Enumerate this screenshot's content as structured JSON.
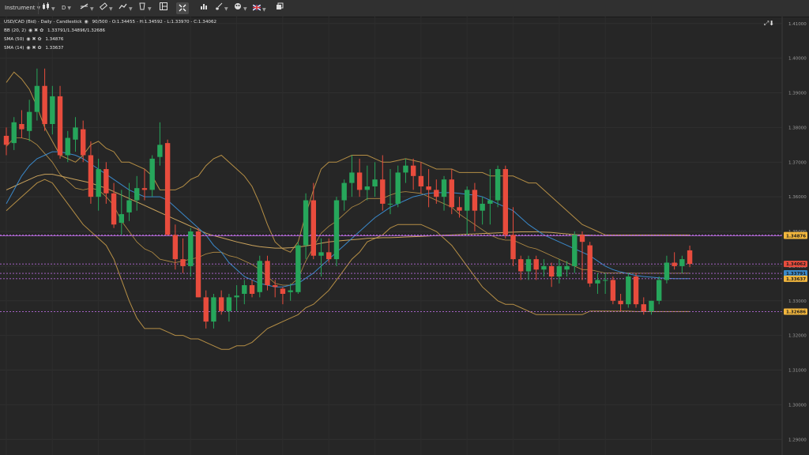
{
  "toolbar": {
    "instrument": "Instrument",
    "timeframe": "D",
    "icons": [
      "candlestick-icon",
      "line-draw-icon",
      "measure-icon",
      "trend-icon",
      "cup-icon",
      "layout-icon",
      "expand-icon",
      "bar-chart-icon",
      "brush-icon",
      "palette-icon",
      "flag-icon",
      "window-icon"
    ]
  },
  "legend": {
    "main": "USD/CAD (Bid) - Daily - Candlestick",
    "main_stats": "90/500 - O:1.34455 - H:1.34592 - L:1.33970 - C:1.34062",
    "ind1_label": "BB (20, 2)",
    "ind1_value": "1.33791/1.34896/1.32686",
    "ind2_label": "SMA (50)",
    "ind2_value": "1.34876",
    "ind3_label": "SMA (14)",
    "ind3_value": "1.33637"
  },
  "colors": {
    "background": "#262626",
    "bull": "#26a65b",
    "bear": "#e84c3d",
    "bb": "#b58e45",
    "sma50": "#c9a25c",
    "sma14": "#3a88c9",
    "hline": "#b46ad8",
    "label_gold": "#f2b63d",
    "label_red": "#e84c3d",
    "label_blue": "#3a88c9"
  },
  "chart_data": {
    "type": "candlestick",
    "y_ticks": [
      "1.41000",
      "1.40000",
      "1.39000",
      "1.38000",
      "1.37000",
      "1.36000",
      "1.35000",
      "1.34000",
      "1.33000",
      "1.32000",
      "1.31000",
      "1.30000",
      "1.29000"
    ],
    "ylim": [
      1.2855,
      1.412
    ],
    "grid": true,
    "candles": [
      {
        "o": 1.3776,
        "h": 1.38,
        "l": 1.372,
        "c": 1.375
      },
      {
        "o": 1.3755,
        "h": 1.383,
        "l": 1.3735,
        "c": 1.3815
      },
      {
        "o": 1.381,
        "h": 1.385,
        "l": 1.377,
        "c": 1.3795
      },
      {
        "o": 1.379,
        "h": 1.388,
        "l": 1.376,
        "c": 1.3845
      },
      {
        "o": 1.3845,
        "h": 1.397,
        "l": 1.382,
        "c": 1.392
      },
      {
        "o": 1.392,
        "h": 1.397,
        "l": 1.379,
        "c": 1.381
      },
      {
        "o": 1.381,
        "h": 1.392,
        "l": 1.378,
        "c": 1.389
      },
      {
        "o": 1.389,
        "h": 1.392,
        "l": 1.371,
        "c": 1.372
      },
      {
        "o": 1.372,
        "h": 1.379,
        "l": 1.37,
        "c": 1.377
      },
      {
        "o": 1.3765,
        "h": 1.383,
        "l": 1.373,
        "c": 1.38
      },
      {
        "o": 1.3795,
        "h": 1.382,
        "l": 1.37,
        "c": 1.372
      },
      {
        "o": 1.372,
        "h": 1.376,
        "l": 1.358,
        "c": 1.36
      },
      {
        "o": 1.36,
        "h": 1.371,
        "l": 1.356,
        "c": 1.368
      },
      {
        "o": 1.368,
        "h": 1.37,
        "l": 1.358,
        "c": 1.361
      },
      {
        "o": 1.361,
        "h": 1.364,
        "l": 1.351,
        "c": 1.352
      },
      {
        "o": 1.3525,
        "h": 1.362,
        "l": 1.349,
        "c": 1.355
      },
      {
        "o": 1.3555,
        "h": 1.364,
        "l": 1.353,
        "c": 1.359
      },
      {
        "o": 1.359,
        "h": 1.366,
        "l": 1.356,
        "c": 1.3625
      },
      {
        "o": 1.3625,
        "h": 1.368,
        "l": 1.359,
        "c": 1.362
      },
      {
        "o": 1.362,
        "h": 1.372,
        "l": 1.36,
        "c": 1.371
      },
      {
        "o": 1.3715,
        "h": 1.3815,
        "l": 1.369,
        "c": 1.375
      },
      {
        "o": 1.3755,
        "h": 1.3765,
        "l": 1.349,
        "c": 1.349
      },
      {
        "o": 1.349,
        "h": 1.352,
        "l": 1.339,
        "c": 1.342
      },
      {
        "o": 1.342,
        "h": 1.348,
        "l": 1.338,
        "c": 1.34
      },
      {
        "o": 1.34,
        "h": 1.351,
        "l": 1.337,
        "c": 1.35
      },
      {
        "o": 1.35,
        "h": 1.351,
        "l": 1.331,
        "c": 1.331
      },
      {
        "o": 1.331,
        "h": 1.333,
        "l": 1.322,
        "c": 1.324
      },
      {
        "o": 1.324,
        "h": 1.332,
        "l": 1.322,
        "c": 1.331
      },
      {
        "o": 1.331,
        "h": 1.333,
        "l": 1.326,
        "c": 1.327
      },
      {
        "o": 1.327,
        "h": 1.332,
        "l": 1.324,
        "c": 1.331
      },
      {
        "o": 1.331,
        "h": 1.3345,
        "l": 1.327,
        "c": 1.3315
      },
      {
        "o": 1.332,
        "h": 1.336,
        "l": 1.329,
        "c": 1.3345
      },
      {
        "o": 1.3345,
        "h": 1.336,
        "l": 1.331,
        "c": 1.332
      },
      {
        "o": 1.3325,
        "h": 1.343,
        "l": 1.331,
        "c": 1.3415
      },
      {
        "o": 1.3415,
        "h": 1.343,
        "l": 1.333,
        "c": 1.3345
      },
      {
        "o": 1.3345,
        "h": 1.336,
        "l": 1.331,
        "c": 1.334
      },
      {
        "o": 1.3335,
        "h": 1.334,
        "l": 1.329,
        "c": 1.332
      },
      {
        "o": 1.3325,
        "h": 1.335,
        "l": 1.33,
        "c": 1.333
      },
      {
        "o": 1.3325,
        "h": 1.347,
        "l": 1.332,
        "c": 1.346
      },
      {
        "o": 1.346,
        "h": 1.361,
        "l": 1.342,
        "c": 1.359
      },
      {
        "o": 1.359,
        "h": 1.364,
        "l": 1.342,
        "c": 1.343
      },
      {
        "o": 1.343,
        "h": 1.348,
        "l": 1.337,
        "c": 1.344
      },
      {
        "o": 1.344,
        "h": 1.348,
        "l": 1.341,
        "c": 1.342
      },
      {
        "o": 1.342,
        "h": 1.36,
        "l": 1.34,
        "c": 1.359
      },
      {
        "o": 1.359,
        "h": 1.365,
        "l": 1.356,
        "c": 1.364
      },
      {
        "o": 1.364,
        "h": 1.372,
        "l": 1.36,
        "c": 1.367
      },
      {
        "o": 1.367,
        "h": 1.371,
        "l": 1.36,
        "c": 1.362
      },
      {
        "o": 1.362,
        "h": 1.369,
        "l": 1.359,
        "c": 1.363
      },
      {
        "o": 1.363,
        "h": 1.37,
        "l": 1.36,
        "c": 1.365
      },
      {
        "o": 1.365,
        "h": 1.372,
        "l": 1.356,
        "c": 1.358
      },
      {
        "o": 1.358,
        "h": 1.368,
        "l": 1.355,
        "c": 1.358
      },
      {
        "o": 1.358,
        "h": 1.369,
        "l": 1.357,
        "c": 1.367
      },
      {
        "o": 1.367,
        "h": 1.371,
        "l": 1.364,
        "c": 1.369
      },
      {
        "o": 1.369,
        "h": 1.371,
        "l": 1.362,
        "c": 1.366
      },
      {
        "o": 1.366,
        "h": 1.37,
        "l": 1.361,
        "c": 1.363
      },
      {
        "o": 1.363,
        "h": 1.368,
        "l": 1.357,
        "c": 1.362
      },
      {
        "o": 1.362,
        "h": 1.365,
        "l": 1.358,
        "c": 1.36
      },
      {
        "o": 1.36,
        "h": 1.366,
        "l": 1.356,
        "c": 1.365
      },
      {
        "o": 1.365,
        "h": 1.368,
        "l": 1.355,
        "c": 1.357
      },
      {
        "o": 1.357,
        "h": 1.36,
        "l": 1.354,
        "c": 1.356
      },
      {
        "o": 1.356,
        "h": 1.363,
        "l": 1.349,
        "c": 1.362
      },
      {
        "o": 1.362,
        "h": 1.364,
        "l": 1.35,
        "c": 1.356
      },
      {
        "o": 1.356,
        "h": 1.36,
        "l": 1.352,
        "c": 1.358
      },
      {
        "o": 1.358,
        "h": 1.368,
        "l": 1.352,
        "c": 1.359
      },
      {
        "o": 1.359,
        "h": 1.369,
        "l": 1.357,
        "c": 1.368
      },
      {
        "o": 1.368,
        "h": 1.369,
        "l": 1.348,
        "c": 1.349
      },
      {
        "o": 1.349,
        "h": 1.357,
        "l": 1.34,
        "c": 1.342
      },
      {
        "o": 1.342,
        "h": 1.343,
        "l": 1.336,
        "c": 1.3385
      },
      {
        "o": 1.3385,
        "h": 1.343,
        "l": 1.336,
        "c": 1.342
      },
      {
        "o": 1.342,
        "h": 1.343,
        "l": 1.336,
        "c": 1.339
      },
      {
        "o": 1.339,
        "h": 1.342,
        "l": 1.337,
        "c": 1.34
      },
      {
        "o": 1.34,
        "h": 1.341,
        "l": 1.334,
        "c": 1.337
      },
      {
        "o": 1.337,
        "h": 1.342,
        "l": 1.335,
        "c": 1.34
      },
      {
        "o": 1.339,
        "h": 1.3415,
        "l": 1.337,
        "c": 1.34
      },
      {
        "o": 1.34,
        "h": 1.35,
        "l": 1.338,
        "c": 1.349
      },
      {
        "o": 1.349,
        "h": 1.35,
        "l": 1.336,
        "c": 1.347
      },
      {
        "o": 1.346,
        "h": 1.347,
        "l": 1.334,
        "c": 1.335
      },
      {
        "o": 1.335,
        "h": 1.338,
        "l": 1.332,
        "c": 1.336
      },
      {
        "o": 1.336,
        "h": 1.338,
        "l": 1.332,
        "c": 1.336
      },
      {
        "o": 1.336,
        "h": 1.337,
        "l": 1.329,
        "c": 1.33
      },
      {
        "o": 1.33,
        "h": 1.332,
        "l": 1.327,
        "c": 1.329
      },
      {
        "o": 1.329,
        "h": 1.338,
        "l": 1.328,
        "c": 1.337
      },
      {
        "o": 1.337,
        "h": 1.338,
        "l": 1.328,
        "c": 1.329
      },
      {
        "o": 1.329,
        "h": 1.331,
        "l": 1.326,
        "c": 1.327
      },
      {
        "o": 1.327,
        "h": 1.33,
        "l": 1.326,
        "c": 1.33
      },
      {
        "o": 1.33,
        "h": 1.337,
        "l": 1.329,
        "c": 1.336
      },
      {
        "o": 1.336,
        "h": 1.343,
        "l": 1.335,
        "c": 1.341
      },
      {
        "o": 1.341,
        "h": 1.344,
        "l": 1.339,
        "c": 1.34
      },
      {
        "o": 1.34,
        "h": 1.343,
        "l": 1.338,
        "c": 1.342
      },
      {
        "o": 1.34455,
        "h": 1.34592,
        "l": 1.3397,
        "c": 1.34062
      }
    ],
    "bb_upper": [
      1.393,
      1.396,
      1.394,
      1.391,
      1.386,
      1.38,
      1.376,
      1.372,
      1.371,
      1.37,
      1.372,
      1.375,
      1.376,
      1.374,
      1.373,
      1.37,
      1.37,
      1.369,
      1.368,
      1.366,
      1.362,
      1.362,
      1.362,
      1.363,
      1.365,
      1.366,
      1.369,
      1.371,
      1.372,
      1.37,
      1.368,
      1.366,
      1.363,
      1.358,
      1.352,
      1.347,
      1.345,
      1.344,
      1.347,
      1.355,
      1.362,
      1.368,
      1.37,
      1.37,
      1.371,
      1.372,
      1.372,
      1.372,
      1.371,
      1.37,
      1.37,
      1.3705,
      1.371,
      1.3705,
      1.37,
      1.369,
      1.368,
      1.368,
      1.368,
      1.367,
      1.367,
      1.367,
      1.367,
      1.366,
      1.366,
      1.366,
      1.366,
      1.365,
      1.364,
      1.364,
      1.362,
      1.36,
      1.358,
      1.356,
      1.354,
      1.352,
      1.351,
      1.35,
      1.349,
      1.349,
      1.349,
      1.349,
      1.349,
      1.349,
      1.349,
      1.349,
      1.349,
      1.349,
      1.349,
      1.349
    ],
    "bb_lower": [
      1.356,
      1.358,
      1.36,
      1.362,
      1.364,
      1.365,
      1.364,
      1.361,
      1.358,
      1.355,
      1.352,
      1.35,
      1.348,
      1.346,
      1.342,
      1.336,
      1.33,
      1.325,
      1.322,
      1.322,
      1.322,
      1.321,
      1.32,
      1.32,
      1.319,
      1.319,
      1.318,
      1.317,
      1.316,
      1.316,
      1.317,
      1.317,
      1.318,
      1.32,
      1.322,
      1.323,
      1.324,
      1.325,
      1.326,
      1.328,
      1.329,
      1.331,
      1.333,
      1.336,
      1.339,
      1.342,
      1.344,
      1.347,
      1.348,
      1.349,
      1.351,
      1.352,
      1.352,
      1.352,
      1.352,
      1.351,
      1.35,
      1.348,
      1.346,
      1.343,
      1.34,
      1.337,
      1.334,
      1.332,
      1.33,
      1.329,
      1.329,
      1.328,
      1.327,
      1.326,
      1.326,
      1.326,
      1.326,
      1.326,
      1.326,
      1.326,
      1.327,
      1.327,
      1.327,
      1.327,
      1.327,
      1.327,
      1.3269,
      1.3269,
      1.3269,
      1.3269,
      1.3269,
      1.3269,
      1.3269,
      1.3269
    ],
    "sma50": [
      1.362,
      1.363,
      1.364,
      1.365,
      1.366,
      1.3665,
      1.3665,
      1.366,
      1.3655,
      1.365,
      1.3645,
      1.364,
      1.3632,
      1.3625,
      1.3615,
      1.3605,
      1.3595,
      1.3585,
      1.3575,
      1.3565,
      1.3555,
      1.3545,
      1.3535,
      1.3525,
      1.3515,
      1.3505,
      1.3495,
      1.3488,
      1.3482,
      1.3476,
      1.347,
      1.3465,
      1.346,
      1.3456,
      1.3454,
      1.3452,
      1.3452,
      1.3453,
      1.3455,
      1.3458,
      1.3462,
      1.3466,
      1.347,
      1.3472,
      1.3474,
      1.3476,
      1.3478,
      1.348,
      1.3481,
      1.3482,
      1.3482,
      1.3483,
      1.3484,
      1.3485,
      1.3486,
      1.3487,
      1.3488,
      1.3489,
      1.349,
      1.3491,
      1.3492,
      1.3493,
      1.3494,
      1.3495,
      1.3496,
      1.3497,
      1.3498,
      1.3499,
      1.3499,
      1.3499,
      1.3498,
      1.3497,
      1.3495,
      1.3493,
      1.3491,
      1.349,
      1.3489,
      1.3488,
      1.3488,
      1.3488,
      1.3488,
      1.3488,
      1.3488,
      1.3488,
      1.3488,
      1.3488,
      1.3488,
      1.3488,
      1.3488,
      1.34876
    ],
    "sma14": [
      1.358,
      1.362,
      1.366,
      1.369,
      1.371,
      1.372,
      1.373,
      1.373,
      1.3725,
      1.372,
      1.371,
      1.3695,
      1.368,
      1.3665,
      1.365,
      1.3635,
      1.362,
      1.361,
      1.36,
      1.36,
      1.36,
      1.359,
      1.357,
      1.355,
      1.353,
      1.351,
      1.349,
      1.346,
      1.344,
      1.341,
      1.339,
      1.337,
      1.336,
      1.335,
      1.3345,
      1.334,
      1.334,
      1.3345,
      1.335,
      1.3365,
      1.338,
      1.34,
      1.342,
      1.344,
      1.346,
      1.348,
      1.35,
      1.352,
      1.354,
      1.3555,
      1.357,
      1.358,
      1.359,
      1.36,
      1.3605,
      1.361,
      1.3612,
      1.3612,
      1.3612,
      1.361,
      1.3607,
      1.3605,
      1.36,
      1.359,
      1.358,
      1.357,
      1.356,
      1.354,
      1.352,
      1.3505,
      1.349,
      1.348,
      1.347,
      1.346,
      1.345,
      1.344,
      1.343,
      1.3415,
      1.34,
      1.339,
      1.3383,
      1.3378,
      1.3373,
      1.337,
      1.3368,
      1.3366,
      1.3365,
      1.3364,
      1.3364,
      1.33637
    ],
    "hlines": [
      {
        "value": 1.34896,
        "label": "1.34896",
        "color": "gold",
        "dashed": true
      },
      {
        "value": 1.34876,
        "label": "1.34876",
        "color": "gold",
        "dashed": false
      },
      {
        "value": 1.34062,
        "label": "1.34062",
        "color": "red",
        "dashed": true
      },
      {
        "value": 1.33791,
        "label": "1.33791",
        "color": "blue",
        "dashed": true
      },
      {
        "value": 1.33637,
        "label": "1.33637",
        "color": "gold",
        "dashed": true
      },
      {
        "value": 1.32686,
        "label": "1.32686",
        "color": "gold",
        "dashed": true
      }
    ]
  }
}
